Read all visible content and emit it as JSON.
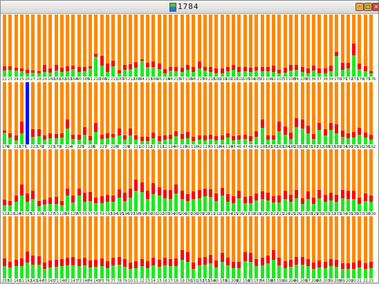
{
  "window": {
    "title": "1784",
    "buttons": [
      "minimize",
      "maximize",
      "close"
    ]
  },
  "colors": {
    "background": "#ff8800",
    "red": "#ff0000",
    "green": "#22e622",
    "selected": "#0010ff"
  },
  "chart_data": {
    "type": "bar",
    "selected_label": "1",
    "rows": [
      {
        "labels": [
          "22",
          "23",
          "24",
          "25",
          "26",
          "27",
          "28",
          "29",
          "160",
          "161",
          "162",
          "163",
          "164",
          "90",
          "165",
          "91",
          "210",
          "166",
          "92",
          "211",
          "167",
          "93",
          "212",
          "168",
          "94",
          "213",
          "169",
          "95",
          "214",
          "96",
          "215",
          "97",
          "216",
          "98",
          "217",
          "99",
          "218",
          "100",
          "219",
          "101",
          "220",
          "102",
          "103",
          "104",
          "105",
          "31",
          "106",
          "32",
          "107",
          "33",
          "108",
          "34",
          "109",
          "35",
          "36",
          "37",
          "38",
          "39",
          "170",
          "171",
          "172",
          "173",
          "174",
          "175",
          "176"
        ],
        "red": [
          0.17,
          0.17,
          0.14,
          0.13,
          0.11,
          0.1,
          0.09,
          0.19,
          0.13,
          0.19,
          0.14,
          0.17,
          0.18,
          0.16,
          0.15,
          0.17,
          0.37,
          0.33,
          0.21,
          0.25,
          0.1,
          0.19,
          0.2,
          0.23,
          0.28,
          0.22,
          0.24,
          0.21,
          0.12,
          0.15,
          0.16,
          0.14,
          0.19,
          0.16,
          0.24,
          0.16,
          0.15,
          0.13,
          0.13,
          0.16,
          0.19,
          0.15,
          0.16,
          0.14,
          0.16,
          0.15,
          0.15,
          0.18,
          0.11,
          0.14,
          0.19,
          0.19,
          0.15,
          0.13,
          0.18,
          0.13,
          0.13,
          0.18,
          0.4,
          0.22,
          0.22,
          0.53,
          0.21,
          0.17,
          0.09
        ],
        "green": [
          0.1,
          0.11,
          0.1,
          0.09,
          0.06,
          0.07,
          0.05,
          0.08,
          0.07,
          0.1,
          0.08,
          0.09,
          0.12,
          0.08,
          0.09,
          0.13,
          0.32,
          0.18,
          0.08,
          0.17,
          0.06,
          0.11,
          0.12,
          0.14,
          0.25,
          0.15,
          0.15,
          0.12,
          0.05,
          0.1,
          0.09,
          0.08,
          0.11,
          0.08,
          0.13,
          0.1,
          0.08,
          0.06,
          0.06,
          0.09,
          0.11,
          0.08,
          0.09,
          0.08,
          0.1,
          0.09,
          0.09,
          0.08,
          0.05,
          0.07,
          0.1,
          0.11,
          0.08,
          0.06,
          0.1,
          0.06,
          0.06,
          0.09,
          0.33,
          0.11,
          0.13,
          0.35,
          0.12,
          0.09,
          0.06
        ]
      },
      {
        "labels": [
          "176",
          "0",
          "221",
          "177",
          "1",
          "222",
          "178",
          "2",
          "223",
          "179",
          "3",
          "224",
          "4",
          "225",
          "5",
          "226",
          "6",
          "227",
          "7",
          "228",
          "8",
          "229",
          "9",
          "111",
          "10",
          "112",
          "11",
          "113",
          "12",
          "114",
          "40",
          "115",
          "41",
          "116",
          "42",
          "117",
          "43",
          "118",
          "44",
          "119",
          "45",
          "46",
          "47",
          "48",
          "49",
          "180",
          "181",
          "182",
          "183",
          "184",
          "185",
          "230",
          "186",
          "231",
          "187",
          "232",
          "188",
          "233",
          "189",
          "234",
          "190",
          "235",
          "191",
          "236",
          "192"
        ],
        "red": [
          0.22,
          0.18,
          0.14,
          0.37,
          1.0,
          0.24,
          0.24,
          0.14,
          0.18,
          0.17,
          0.18,
          0.4,
          0.16,
          0.15,
          0.28,
          0.13,
          0.34,
          0.15,
          0.18,
          0.17,
          0.26,
          0.14,
          0.25,
          0.14,
          0.12,
          0.12,
          0.19,
          0.13,
          0.14,
          0.16,
          0.21,
          0.17,
          0.2,
          0.12,
          0.14,
          0.14,
          0.16,
          0.13,
          0.14,
          0.18,
          0.13,
          0.14,
          0.15,
          0.13,
          0.21,
          0.4,
          0.14,
          0.14,
          0.37,
          0.29,
          0.19,
          0.42,
          0.4,
          0.3,
          0.17,
          0.34,
          0.24,
          0.34,
          0.32,
          0.22,
          0.18,
          0.2,
          0.27,
          0.19,
          0.15
        ],
        "green": [
          0.19,
          0.11,
          0.07,
          0.18,
          0.0,
          0.12,
          0.13,
          0.08,
          0.1,
          0.1,
          0.11,
          0.25,
          0.09,
          0.08,
          0.16,
          0.07,
          0.2,
          0.09,
          0.1,
          0.11,
          0.14,
          0.08,
          0.14,
          0.08,
          0.05,
          0.06,
          0.1,
          0.06,
          0.08,
          0.09,
          0.13,
          0.09,
          0.1,
          0.05,
          0.08,
          0.07,
          0.09,
          0.07,
          0.08,
          0.11,
          0.07,
          0.08,
          0.09,
          0.06,
          0.12,
          0.27,
          0.08,
          0.08,
          0.21,
          0.15,
          0.09,
          0.28,
          0.26,
          0.18,
          0.09,
          0.23,
          0.14,
          0.23,
          0.18,
          0.12,
          0.1,
          0.11,
          0.16,
          0.11,
          0.08
        ]
      },
      {
        "labels": [
          "122",
          "123",
          "124",
          "50",
          "125",
          "51",
          "126",
          "52",
          "127",
          "53",
          "128",
          "54",
          "129",
          "55",
          "56",
          "57",
          "58",
          "59",
          "193",
          "194",
          "195",
          "196",
          "197",
          "198",
          "199",
          "200",
          "201",
          "202",
          "203",
          "204",
          "205",
          "206",
          "207",
          "208",
          "209",
          "210",
          "211",
          "212",
          "213",
          "214",
          "215",
          "216",
          "217",
          "218",
          "219",
          "220",
          "221",
          "222",
          "223",
          "224",
          "225",
          "226",
          "227",
          "228",
          "229",
          "230",
          "231",
          "232",
          "233",
          "234",
          "235",
          "236",
          "237",
          "238",
          "239"
        ],
        "red": [
          0.19,
          0.17,
          0.26,
          0.43,
          0.29,
          0.33,
          0.17,
          0.19,
          0.22,
          0.23,
          0.17,
          0.37,
          0.26,
          0.37,
          0.3,
          0.31,
          0.22,
          0.24,
          0.27,
          0.26,
          0.36,
          0.3,
          0.37,
          0.51,
          0.47,
          0.33,
          0.45,
          0.39,
          0.34,
          0.34,
          0.43,
          0.33,
          0.28,
          0.32,
          0.34,
          0.37,
          0.36,
          0.29,
          0.38,
          0.28,
          0.24,
          0.33,
          0.23,
          0.24,
          0.29,
          0.32,
          0.3,
          0.24,
          0.25,
          0.33,
          0.27,
          0.35,
          0.21,
          0.32,
          0.22,
          0.34,
          0.27,
          0.3,
          0.27,
          0.34,
          0.33,
          0.33,
          0.22,
          0.29,
          0.25
        ],
        "green": [
          0.1,
          0.1,
          0.15,
          0.26,
          0.16,
          0.2,
          0.09,
          0.11,
          0.12,
          0.12,
          0.1,
          0.26,
          0.14,
          0.25,
          0.16,
          0.17,
          0.13,
          0.13,
          0.16,
          0.15,
          0.22,
          0.17,
          0.22,
          0.33,
          0.31,
          0.2,
          0.28,
          0.26,
          0.21,
          0.2,
          0.29,
          0.2,
          0.17,
          0.2,
          0.21,
          0.24,
          0.23,
          0.17,
          0.25,
          0.16,
          0.13,
          0.21,
          0.13,
          0.13,
          0.18,
          0.2,
          0.18,
          0.14,
          0.14,
          0.2,
          0.15,
          0.21,
          0.12,
          0.2,
          0.12,
          0.21,
          0.16,
          0.18,
          0.16,
          0.21,
          0.2,
          0.2,
          0.12,
          0.17,
          0.15
        ]
      },
      {
        "labels": [
          "257",
          "60",
          "141",
          "61",
          "142",
          "143",
          "144",
          "70",
          "145",
          "71",
          "146",
          "72",
          "147",
          "73",
          "148",
          "74",
          "149",
          "75",
          "76",
          "77",
          "78",
          "79",
          "10",
          "11",
          "12",
          "13",
          "14",
          "15",
          "16",
          "17",
          "18",
          "19",
          "150",
          "151",
          "152",
          "153",
          "154",
          "80",
          "155",
          "81",
          "209",
          "82",
          "156",
          "83",
          "157",
          "84",
          "158",
          "85",
          "159",
          "86",
          "204",
          "86",
          "205",
          "87",
          "206",
          "88",
          "207",
          "89",
          "208",
          "89",
          "209",
          "20",
          "21",
          "22",
          "23"
        ],
        "red": [
          0.32,
          0.27,
          0.3,
          0.32,
          0.43,
          0.37,
          0.36,
          0.26,
          0.29,
          0.3,
          0.31,
          0.33,
          0.34,
          0.31,
          0.33,
          0.29,
          0.3,
          0.32,
          0.28,
          0.33,
          0.34,
          0.31,
          0.26,
          0.28,
          0.31,
          0.28,
          0.33,
          0.3,
          0.33,
          0.31,
          0.32,
          0.45,
          0.42,
          0.26,
          0.33,
          0.34,
          0.38,
          0.29,
          0.41,
          0.33,
          0.27,
          0.27,
          0.42,
          0.41,
          0.31,
          0.33,
          0.37,
          0.45,
          0.33,
          0.28,
          0.3,
          0.34,
          0.34,
          0.31,
          0.26,
          0.29,
          0.27,
          0.31,
          0.3,
          0.24,
          0.24,
          0.25,
          0.29,
          0.24,
          0.27
        ],
        "green": [
          0.2,
          0.18,
          0.2,
          0.2,
          0.26,
          0.22,
          0.22,
          0.15,
          0.18,
          0.19,
          0.2,
          0.21,
          0.21,
          0.2,
          0.21,
          0.18,
          0.19,
          0.2,
          0.17,
          0.21,
          0.22,
          0.19,
          0.15,
          0.17,
          0.2,
          0.17,
          0.21,
          0.19,
          0.21,
          0.2,
          0.2,
          0.3,
          0.27,
          0.16,
          0.21,
          0.22,
          0.24,
          0.18,
          0.27,
          0.21,
          0.17,
          0.17,
          0.28,
          0.27,
          0.2,
          0.21,
          0.24,
          0.3,
          0.21,
          0.17,
          0.19,
          0.22,
          0.22,
          0.2,
          0.16,
          0.18,
          0.17,
          0.2,
          0.19,
          0.15,
          0.15,
          0.15,
          0.18,
          0.15,
          0.17
        ]
      }
    ]
  }
}
